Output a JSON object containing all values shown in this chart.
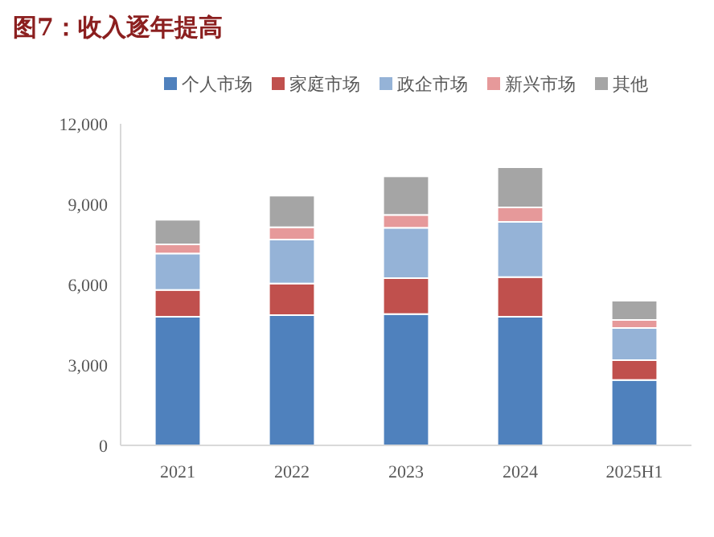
{
  "chart_data": {
    "type": "bar",
    "title": "图7：收入逐年提高",
    "stacked": true,
    "categories": [
      "2021",
      "2022",
      "2023",
      "2024",
      "2025H1"
    ],
    "series": [
      {
        "name": "个人市场",
        "color": "#4f81bd",
        "values": [
          4800,
          4860,
          4900,
          4800,
          2440
        ]
      },
      {
        "name": "家庭市场",
        "color": "#c0504d",
        "values": [
          1000,
          1180,
          1340,
          1480,
          740
        ]
      },
      {
        "name": "政企市场",
        "color": "#95b3d7",
        "values": [
          1360,
          1640,
          1880,
          2060,
          1200
        ]
      },
      {
        "name": "新兴市场",
        "color": "#e6999a",
        "values": [
          340,
          460,
          480,
          540,
          300
        ]
      },
      {
        "name": "其他",
        "color": "#a5a5a5",
        "values": [
          920,
          1180,
          1440,
          1500,
          720
        ]
      }
    ],
    "ylim": [
      0,
      12000
    ],
    "yticks": [
      {
        "value": 0,
        "label": "0"
      },
      {
        "value": 3000,
        "label": "3,000"
      },
      {
        "value": 6000,
        "label": "6,000"
      },
      {
        "value": 9000,
        "label": "9,000"
      },
      {
        "value": 12000,
        "label": "12,000"
      }
    ],
    "grid": false,
    "legend": "top"
  }
}
